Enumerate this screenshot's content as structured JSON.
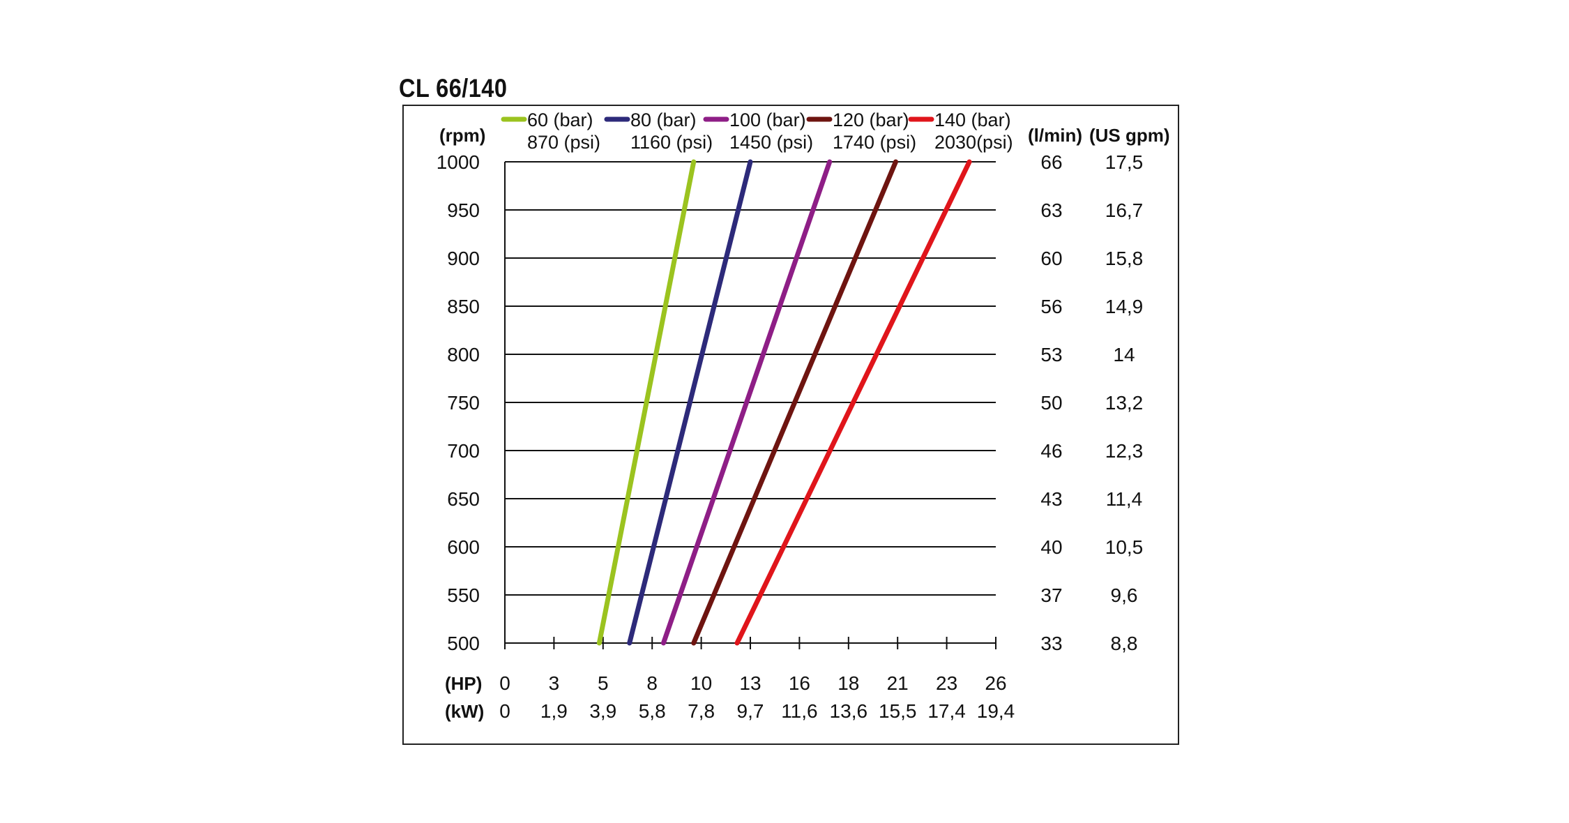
{
  "title": "CL 66/140",
  "chart_data": {
    "type": "line",
    "ylabel": "(rpm)",
    "xlabel_hp": "(HP)",
    "xlabel_kw": "(kW)",
    "right_col1_label": "(l/min)",
    "right_col2_label": "(US gpm)",
    "ylim": [
      500,
      1000
    ],
    "y_ticks": [
      1000,
      950,
      900,
      850,
      800,
      750,
      700,
      650,
      600,
      550,
      500
    ],
    "flow_lmin": [
      "66",
      "63",
      "60",
      "56",
      "53",
      "50",
      "46",
      "43",
      "40",
      "37",
      "33"
    ],
    "flow_usgpm": [
      "17,5",
      "16,7",
      "15,8",
      "14,9",
      "14",
      "13,2",
      "12,3",
      "11,4",
      "10,5",
      "9,6",
      "8,8"
    ],
    "xlim": [
      0,
      26
    ],
    "hp_ticks": [
      "0",
      "3",
      "5",
      "8",
      "10",
      "13",
      "16",
      "18",
      "21",
      "23",
      "26"
    ],
    "kw_ticks": [
      "0",
      "1,9",
      "3,9",
      "5,8",
      "7,8",
      "9,7",
      "11,6",
      "13,6",
      "15,5",
      "17,4",
      "19,4"
    ],
    "grid": true,
    "legend_position": "top",
    "series": [
      {
        "name": "60 (bar)",
        "name2": "870 (psi)",
        "color": "#9bc31f",
        "x": [
          5.0,
          10.0
        ],
        "y": [
          500,
          1000
        ]
      },
      {
        "name": "80 (bar)",
        "name2": "1160 (psi)",
        "color": "#2d2a7a",
        "x": [
          6.6,
          13.0
        ],
        "y": [
          500,
          1000
        ]
      },
      {
        "name": "100 (bar)",
        "name2": "1450 (psi)",
        "color": "#8e1e86",
        "x": [
          8.4,
          17.2
        ],
        "y": [
          500,
          1000
        ]
      },
      {
        "name": "120 (bar)",
        "name2": "1740 (psi)",
        "color": "#6e1410",
        "x": [
          10.0,
          20.7
        ],
        "y": [
          500,
          1000
        ]
      },
      {
        "name": "140 (bar)",
        "name2": "2030(psi)",
        "color": "#e0151b",
        "x": [
          12.3,
          24.6
        ],
        "y": [
          500,
          1000
        ]
      }
    ]
  }
}
